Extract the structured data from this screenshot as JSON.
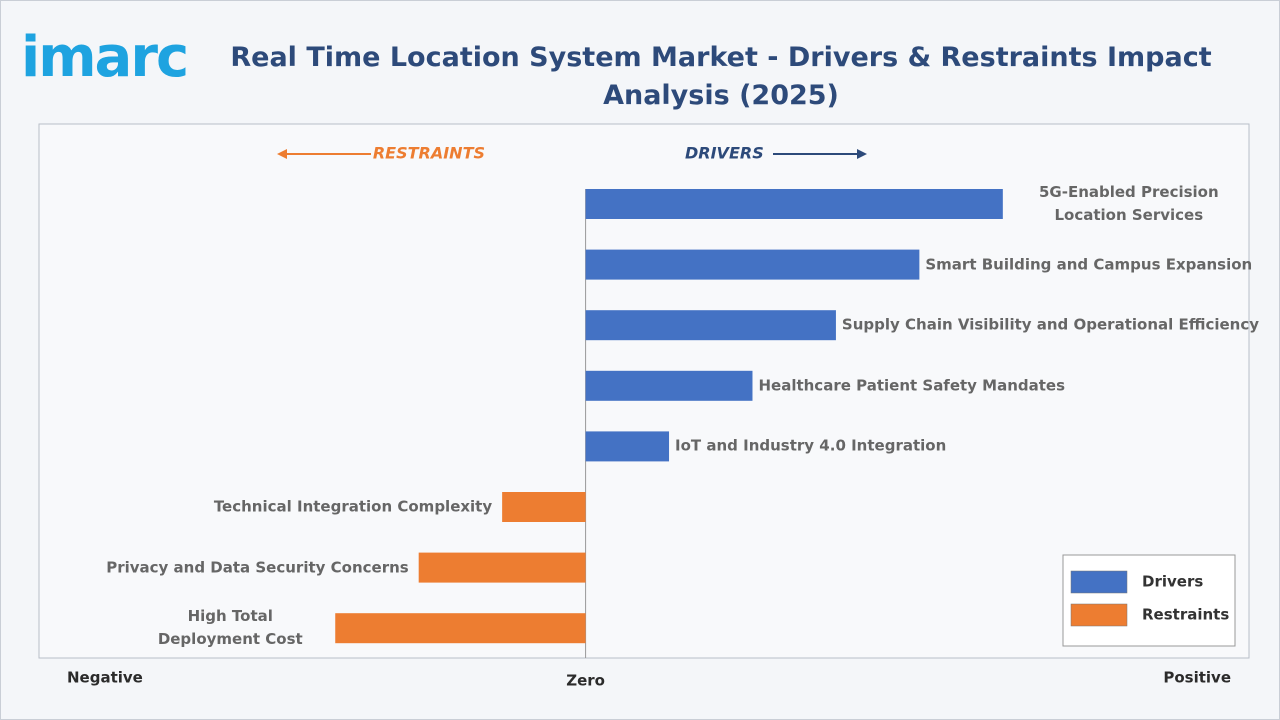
{
  "logo": "imarc",
  "chart_data": {
    "type": "diverging-bar",
    "title": "Real Time Location System Market - Drivers & Restraints Impact Analysis (2025)",
    "left_label": "RESTRAINTS",
    "right_label": "DRIVERS",
    "categories": [
      "5G-Enabled Precision Location Services",
      "Smart Building and Campus Expansion",
      "Supply Chain Visibility and Operational Efficiency",
      "Healthcare Patient Safety Mandates",
      "IoT and Industry 4.0 Integration",
      "Technical Integration Complexity",
      "Privacy and Data Security Concerns",
      "High Total Deployment Cost"
    ],
    "series": [
      {
        "name": "Drivers",
        "color": "#4472c4",
        "values": [
          5,
          4,
          3,
          2,
          1,
          null,
          null,
          null
        ]
      },
      {
        "name": "Restraints",
        "color": "#ed7d31",
        "values": [
          null,
          null,
          null,
          null,
          null,
          -1,
          -2,
          -3
        ]
      }
    ],
    "xlim": [
      -6.55,
      7.95
    ],
    "xticks": [
      {
        "value": -6.55,
        "label": "Negative"
      },
      {
        "value": 0,
        "label": "Zero"
      },
      {
        "value": 7.95,
        "label": "Positive"
      }
    ],
    "legend": "lower-right"
  }
}
